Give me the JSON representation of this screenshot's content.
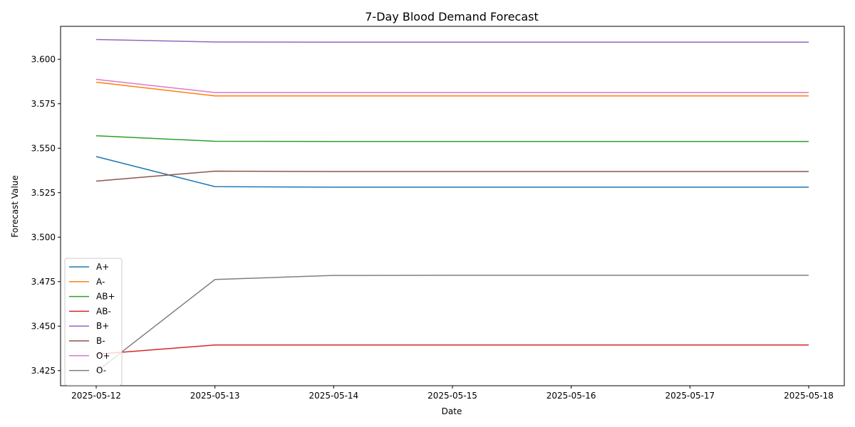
{
  "chart_data": {
    "type": "line",
    "title": "7-Day Blood Demand Forecast",
    "xlabel": "Date",
    "ylabel": "Forecast Value",
    "x": [
      "2025-05-12",
      "2025-05-13",
      "2025-05-14",
      "2025-05-15",
      "2025-05-16",
      "2025-05-17",
      "2025-05-18"
    ],
    "ylim": [
      3.4165,
      3.6185
    ],
    "yticks": [
      3.425,
      3.45,
      3.475,
      3.5,
      3.525,
      3.55,
      3.575,
      3.6
    ],
    "ytick_labels": [
      "3.425",
      "3.450",
      "3.475",
      "3.500",
      "3.525",
      "3.550",
      "3.575",
      "3.600"
    ],
    "grid": false,
    "legend_position": "lower-left",
    "series": [
      {
        "name": "A+",
        "color": "#1f77b4",
        "values": [
          3.5453,
          3.5284,
          3.5281,
          3.5281,
          3.5281,
          3.5281,
          3.5281
        ]
      },
      {
        "name": "A-",
        "color": "#ff7f0e",
        "values": [
          3.5871,
          3.5794,
          3.5794,
          3.5794,
          3.5794,
          3.5794,
          3.5794
        ]
      },
      {
        "name": "AB+",
        "color": "#2ca02c",
        "values": [
          3.557,
          3.5539,
          3.5538,
          3.5538,
          3.5538,
          3.5538,
          3.5538
        ]
      },
      {
        "name": "AB-",
        "color": "#d62728",
        "values": [
          3.4342,
          3.4394,
          3.4394,
          3.4394,
          3.4394,
          3.4394,
          3.4394
        ]
      },
      {
        "name": "B+",
        "color": "#9467bd",
        "values": [
          3.6111,
          3.6097,
          3.6096,
          3.6096,
          3.6096,
          3.6096,
          3.6096
        ]
      },
      {
        "name": "B-",
        "color": "#8c564b",
        "values": [
          3.5315,
          3.5371,
          3.5369,
          3.5369,
          3.5369,
          3.5369,
          3.5369
        ]
      },
      {
        "name": "O+",
        "color": "#e377c2",
        "values": [
          3.5887,
          3.5813,
          3.5813,
          3.5813,
          3.5813,
          3.5813,
          3.5813
        ]
      },
      {
        "name": "O-",
        "color": "#7f7f7f",
        "values": [
          3.4243,
          3.4762,
          3.4785,
          3.4786,
          3.4786,
          3.4786,
          3.4786
        ]
      }
    ]
  }
}
